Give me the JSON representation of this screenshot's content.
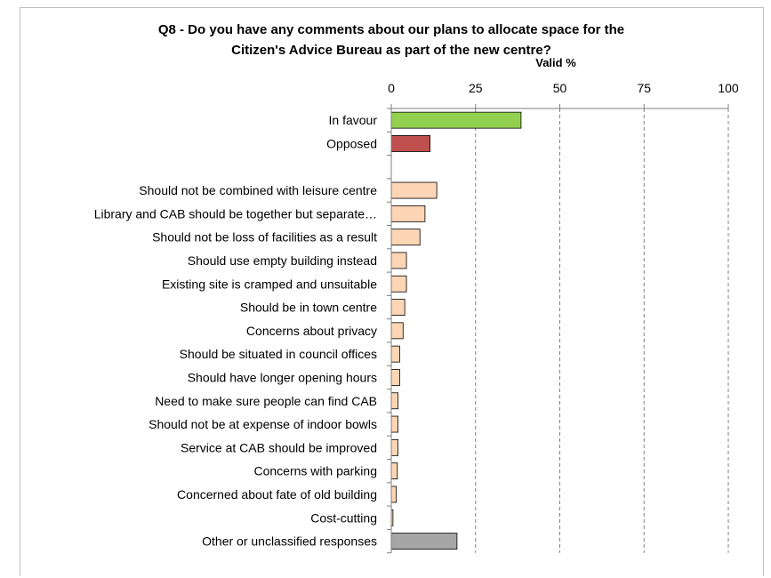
{
  "chart_data": {
    "type": "bar",
    "orientation": "horizontal",
    "title_lines": [
      "Q8 - Do you have any comments about our plans to allocate space for the",
      "Citizen's Advice Bureau as part of the new centre?"
    ],
    "xlabel": "Valid %",
    "xlim": [
      0,
      100
    ],
    "xticks": [
      "0",
      "25",
      "50",
      "75",
      "100"
    ],
    "grid": "vertical dashed",
    "categories": [
      "In favour",
      "Opposed",
      "",
      "Should not be combined with leisure centre",
      "Library and CAB should be together but separate…",
      "Should not be loss of facilities as a result",
      "Should use empty building instead",
      "Existing site is cramped and unsuitable",
      "Should be in town centre",
      "Concerns about privacy",
      "Should be situated in council offices",
      "Should have longer opening hours",
      "Need to make sure people can find CAB",
      "Should not be at expense of indoor bowls",
      "Service at CAB should be improved",
      "Concerns with parking",
      "Concerned about fate of old building",
      "Cost-cutting",
      "Other or unclassified responses"
    ],
    "values": [
      38.5,
      11.5,
      null,
      13.5,
      10,
      8.5,
      4.5,
      4.5,
      4,
      3.5,
      2.5,
      2.5,
      2,
      2,
      2,
      1.8,
      1.5,
      0.5,
      19.5
    ],
    "colors": [
      "#92d050",
      "#c0504d",
      null,
      "#fcd5b5",
      "#fcd5b5",
      "#fcd5b5",
      "#fcd5b5",
      "#fcd5b5",
      "#fcd5b5",
      "#fcd5b5",
      "#fcd5b5",
      "#fcd5b5",
      "#fcd5b5",
      "#fcd5b5",
      "#fcd5b5",
      "#fcd5b5",
      "#fcd5b5",
      "#fcd5b5",
      "#a6a6a6"
    ]
  }
}
